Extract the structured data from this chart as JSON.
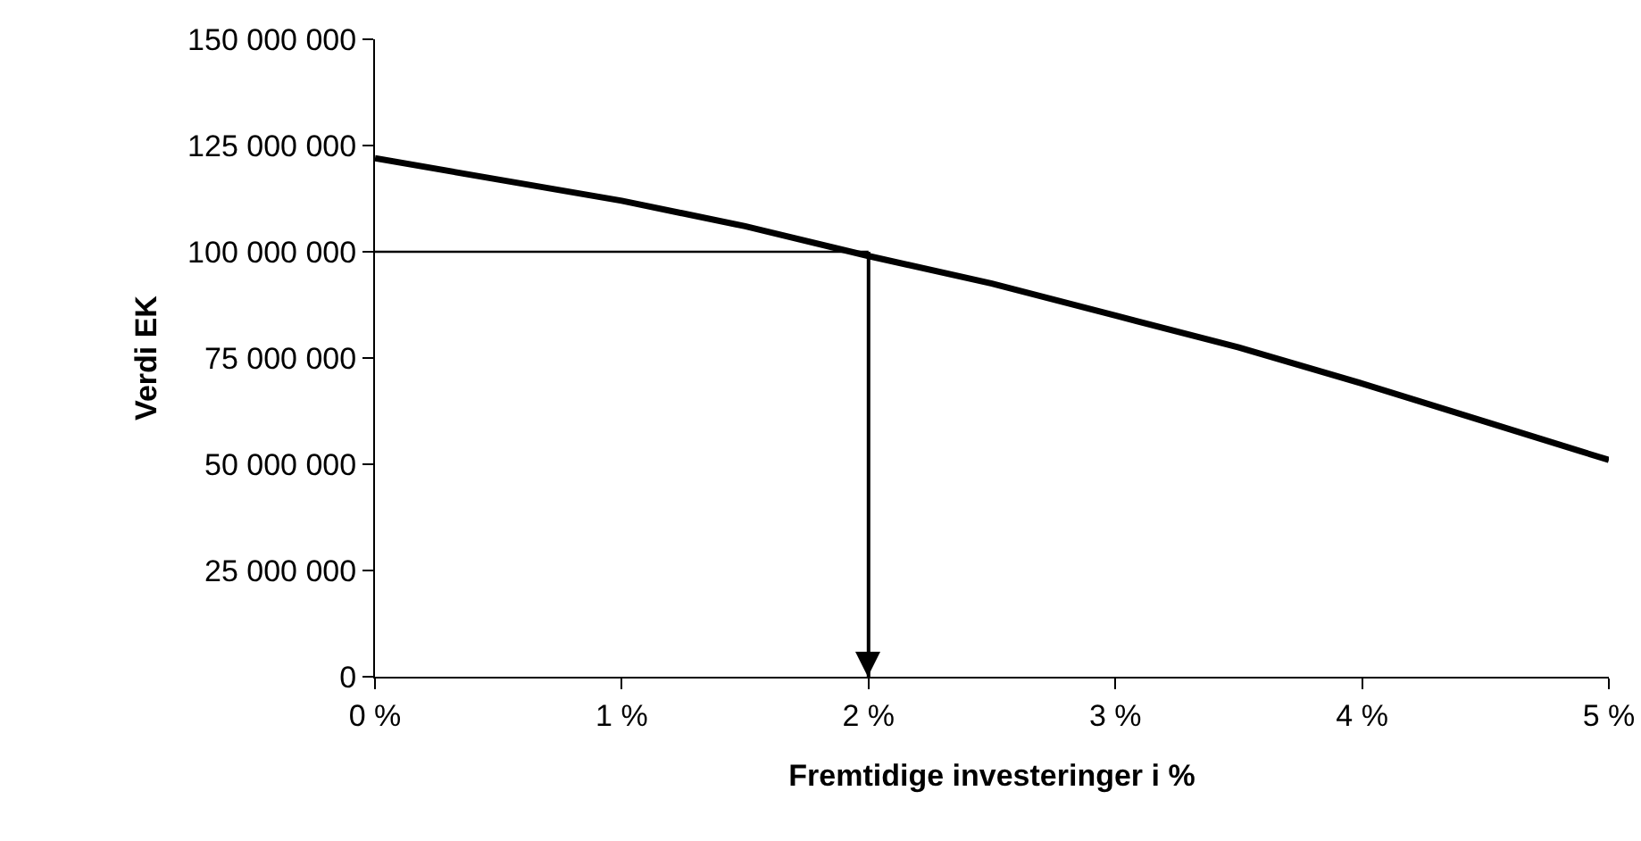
{
  "chart_data": {
    "type": "line",
    "xlabel": "Fremtidige investeringer i %",
    "ylabel": "Verdi EK",
    "x": [
      0,
      0.5,
      1,
      1.5,
      2,
      2.5,
      3,
      3.5,
      4,
      4.5,
      5
    ],
    "series": [
      {
        "color": "#000000",
        "values": [
          122000000,
          117000000,
          112000000,
          106000000,
          99000000,
          92500000,
          85000000,
          77500000,
          69000000,
          60000000,
          51000000
        ]
      }
    ],
    "xlim": [
      0,
      5
    ],
    "xticks": [
      {
        "value": 0,
        "label": "0 %"
      },
      {
        "value": 1,
        "label": "1 %"
      },
      {
        "value": 2,
        "label": "2 %"
      },
      {
        "value": 3,
        "label": "3 %"
      },
      {
        "value": 4,
        "label": "4 %"
      },
      {
        "value": 5,
        "label": "5 %"
      }
    ],
    "ylim": [
      0,
      150000000
    ],
    "yticks": [
      {
        "value": 0,
        "label": "0"
      },
      {
        "value": 25000000,
        "label": "25 000 000"
      },
      {
        "value": 50000000,
        "label": "50 000 000"
      },
      {
        "value": 75000000,
        "label": "75 000 000"
      },
      {
        "value": 100000000,
        "label": "100 000 000"
      },
      {
        "value": 125000000,
        "label": "125 000 000"
      },
      {
        "value": 150000000,
        "label": "150 000 000"
      }
    ],
    "ref_lines": [
      {
        "axis": "y",
        "value": 100000000,
        "color": "#000000"
      },
      {
        "axis": "x",
        "value": 2,
        "color": "#000000"
      }
    ],
    "grid": false,
    "marker": "none",
    "line_style": "solid"
  }
}
